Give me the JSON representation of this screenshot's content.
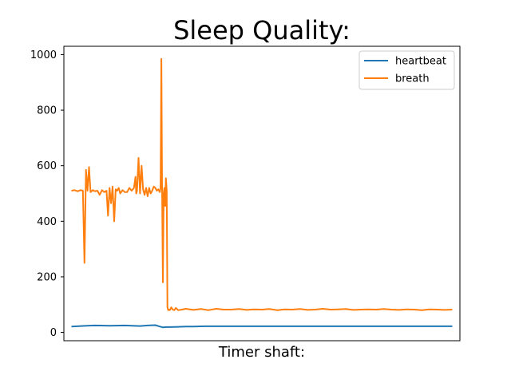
{
  "chart_data": {
    "type": "line",
    "title": "Sleep Quality:",
    "xlabel": "Timer shaft:",
    "ylabel": "",
    "ylim": [
      -30,
      1030
    ],
    "xlim": [
      -20,
      1020
    ],
    "yticks": [
      0,
      200,
      400,
      600,
      800,
      1000
    ],
    "xticks_shown": false,
    "grid": false,
    "legend_position": "top-right",
    "series": [
      {
        "name": "heartbeat",
        "color": "#1f77b4",
        "x": [
          0,
          40,
          60,
          100,
          140,
          160,
          180,
          200,
          220,
          230,
          240,
          250,
          260,
          280,
          300,
          320,
          350,
          400,
          450,
          500,
          550,
          600,
          650,
          700,
          750,
          800,
          850,
          900,
          950,
          1000
        ],
        "y": [
          21,
          24,
          25,
          24,
          25,
          24,
          23,
          25,
          26,
          22,
          18,
          19,
          19,
          20,
          21,
          21,
          22,
          22,
          22,
          22,
          22,
          22,
          22,
          22,
          22,
          22,
          22,
          22,
          22,
          22
        ]
      },
      {
        "name": "breath",
        "color": "#ff7f0e",
        "x": [
          0,
          8,
          16,
          24,
          30,
          34,
          38,
          42,
          46,
          50,
          56,
          62,
          68,
          74,
          80,
          86,
          92,
          96,
          100,
          104,
          108,
          112,
          116,
          120,
          124,
          128,
          134,
          140,
          146,
          152,
          158,
          164,
          168,
          170,
          172,
          176,
          180,
          184,
          188,
          192,
          196,
          200,
          204,
          208,
          212,
          216,
          220,
          224,
          228,
          232,
          234,
          236,
          238,
          240,
          242,
          244,
          246,
          248,
          250,
          252,
          254,
          256,
          258,
          260,
          262,
          266,
          270,
          274,
          280,
          290,
          300,
          320,
          340,
          360,
          380,
          400,
          420,
          440,
          460,
          480,
          500,
          520,
          540,
          560,
          580,
          600,
          620,
          640,
          660,
          680,
          700,
          720,
          740,
          760,
          780,
          800,
          820,
          840,
          860,
          880,
          900,
          920,
          940,
          960,
          980,
          1000
        ],
        "y": [
          510,
          512,
          508,
          512,
          510,
          250,
          585,
          510,
          595,
          505,
          512,
          508,
          510,
          495,
          512,
          505,
          510,
          420,
          520,
          465,
          525,
          400,
          515,
          510,
          520,
          500,
          512,
          505,
          505,
          520,
          510,
          520,
          560,
          500,
          510,
          628,
          500,
          600,
          515,
          495,
          520,
          490,
          520,
          500,
          510,
          525,
          520,
          510,
          515,
          505,
          520,
          985,
          520,
          180,
          500,
          520,
          455,
          555,
          510,
          90,
          80,
          82,
          80,
          84,
          90,
          82,
          80,
          88,
          80,
          82,
          85,
          81,
          84,
          80,
          85,
          82,
          82,
          84,
          81,
          83,
          82,
          84,
          80,
          83,
          82,
          84,
          81,
          82,
          85,
          82,
          83,
          84,
          81,
          82,
          83,
          82,
          84,
          82,
          81,
          83,
          82,
          80,
          83,
          82,
          81,
          82
        ]
      }
    ]
  }
}
